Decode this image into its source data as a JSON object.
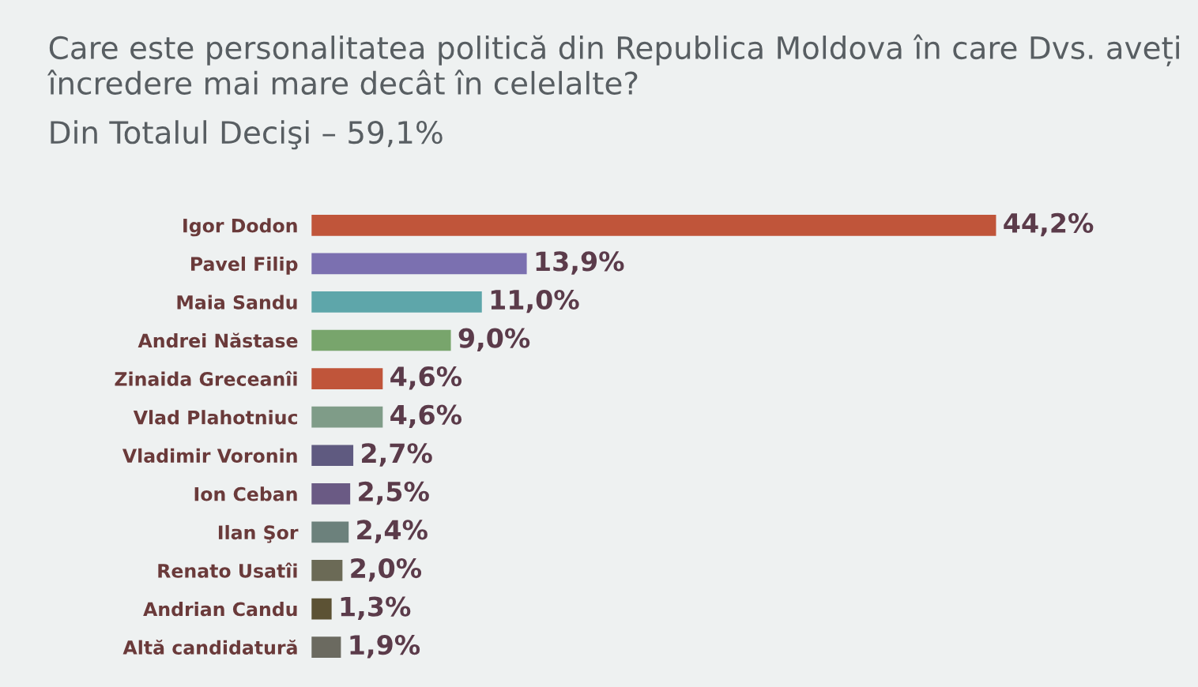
{
  "chart_data": {
    "type": "bar",
    "orientation": "horizontal",
    "title": "Care este personalitatea politică din Republica Moldova în care Dvs. aveți încredere mai mare decât în celelalte?",
    "subtitle": "Din Totalul Decişi – 59,1%",
    "categories": [
      "Igor Dodon",
      "Pavel Filip",
      "Maia Sandu",
      "Andrei Năstase",
      "Zinaida Greceanîi",
      "Vlad Plahotniuc",
      "Vladimir Voronin",
      "Ion Ceban",
      "Ilan Şor",
      "Renato Usatîi",
      "Andrian Candu",
      "Altă candidatură"
    ],
    "values": [
      44.2,
      13.9,
      11.0,
      9.0,
      4.6,
      4.6,
      2.7,
      2.5,
      2.4,
      2.0,
      1.3,
      1.9
    ],
    "value_labels": [
      "44,2%",
      "13,9%",
      "11,0%",
      "9,0%",
      "4,6%",
      "4,6%",
      "2,7%",
      "2,5%",
      "2,4%",
      "2,0%",
      "1,3%",
      "1,9%"
    ],
    "colors": [
      "#c0553a",
      "#7b70b0",
      "#5ea6aa",
      "#78a56c",
      "#c0553a",
      "#7f9c88",
      "#5f5a80",
      "#6a5a84",
      "#6c817c",
      "#6b6a56",
      "#5c5234",
      "#6b6a60"
    ],
    "tick_labels": "y"
  }
}
